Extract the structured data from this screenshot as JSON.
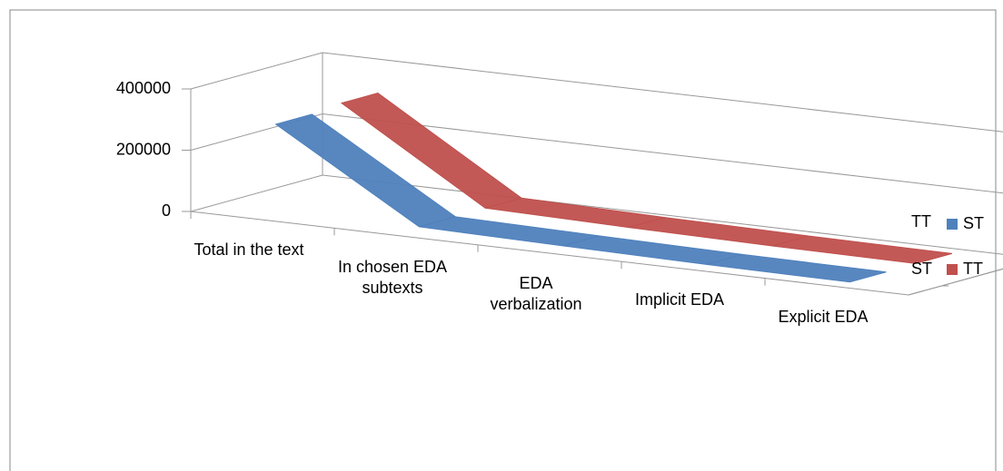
{
  "chart_data": {
    "type": "line3d",
    "categories": [
      "Total in the text",
      "In chosen EDA subtexts",
      "EDA verbalization",
      "Implicit EDA",
      "Explicit EDA"
    ],
    "series": [
      {
        "name": "ST",
        "color": "#4f81bd",
        "values": [
          300000,
          20000,
          12000,
          6000,
          3000
        ]
      },
      {
        "name": "TT",
        "color": "#c0504d",
        "values": [
          310000,
          22000,
          13000,
          7000,
          4000
        ]
      }
    ],
    "ylim": [
      0,
      400000
    ],
    "yticks": [
      0,
      200000,
      400000
    ],
    "grid": true
  }
}
